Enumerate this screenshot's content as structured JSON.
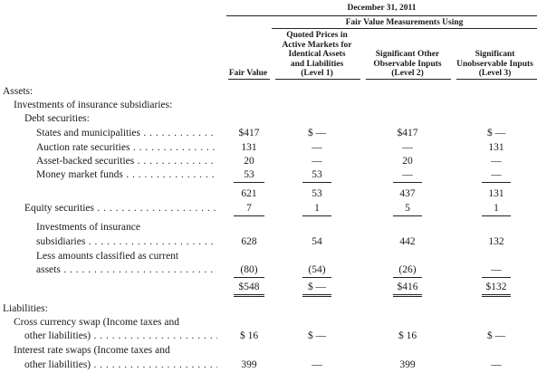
{
  "header": {
    "period": "December 31, 2011",
    "group": "Fair Value Measurements Using",
    "col_fair_value": "Fair Value",
    "col_level1": [
      "Quoted Prices in",
      "Active Markets for",
      "Identical Assets",
      "and Liabilities",
      "(Level 1)"
    ],
    "col_level2": [
      "Significant Other",
      "Observable Inputs",
      "(Level 2)"
    ],
    "col_level3": [
      "Significant",
      "Unobservable Inputs",
      "(Level 3)"
    ]
  },
  "labels": {
    "assets": "Assets:",
    "investments": "Investments of insurance subsidiaries:",
    "debt": "Debt securities:",
    "states": "States and municipalities",
    "auction": "Auction rate securities",
    "abs": "Asset-backed securities",
    "mmf": "Money market funds",
    "equity": "Equity securities",
    "inv_total_1": "Investments of insurance",
    "inv_total_2": "subsidiaries",
    "less_1": "Less amounts classified as current",
    "less_2": "assets",
    "liabilities": "Liabilities:",
    "ccs_1": "Cross currency swap (Income taxes and",
    "ccs_2": "other liabilities)",
    "irs_1": "Interest rate swaps (Income taxes and",
    "irs_2": "other liabilities)"
  },
  "rows": {
    "states": [
      "$417",
      "$ —",
      "$417",
      "$ —"
    ],
    "auction": [
      "131",
      "—",
      "—",
      "131"
    ],
    "abs": [
      "20",
      "—",
      "20",
      "—"
    ],
    "mmf": [
      "53",
      "53",
      "—",
      "—"
    ],
    "debt_total": [
      "621",
      "53",
      "437",
      "131"
    ],
    "equity": [
      "7",
      "1",
      "5",
      "1"
    ],
    "inv_total": [
      "628",
      "54",
      "442",
      "132"
    ],
    "less": [
      "(80)",
      "(54)",
      "(26)",
      "—"
    ],
    "net": [
      "$548",
      "$ —",
      "$416",
      "$132"
    ],
    "ccs": [
      "$ 16",
      "$ —",
      "$ 16",
      "$ —"
    ],
    "irs": [
      "399",
      "—",
      "399",
      "—"
    ]
  }
}
